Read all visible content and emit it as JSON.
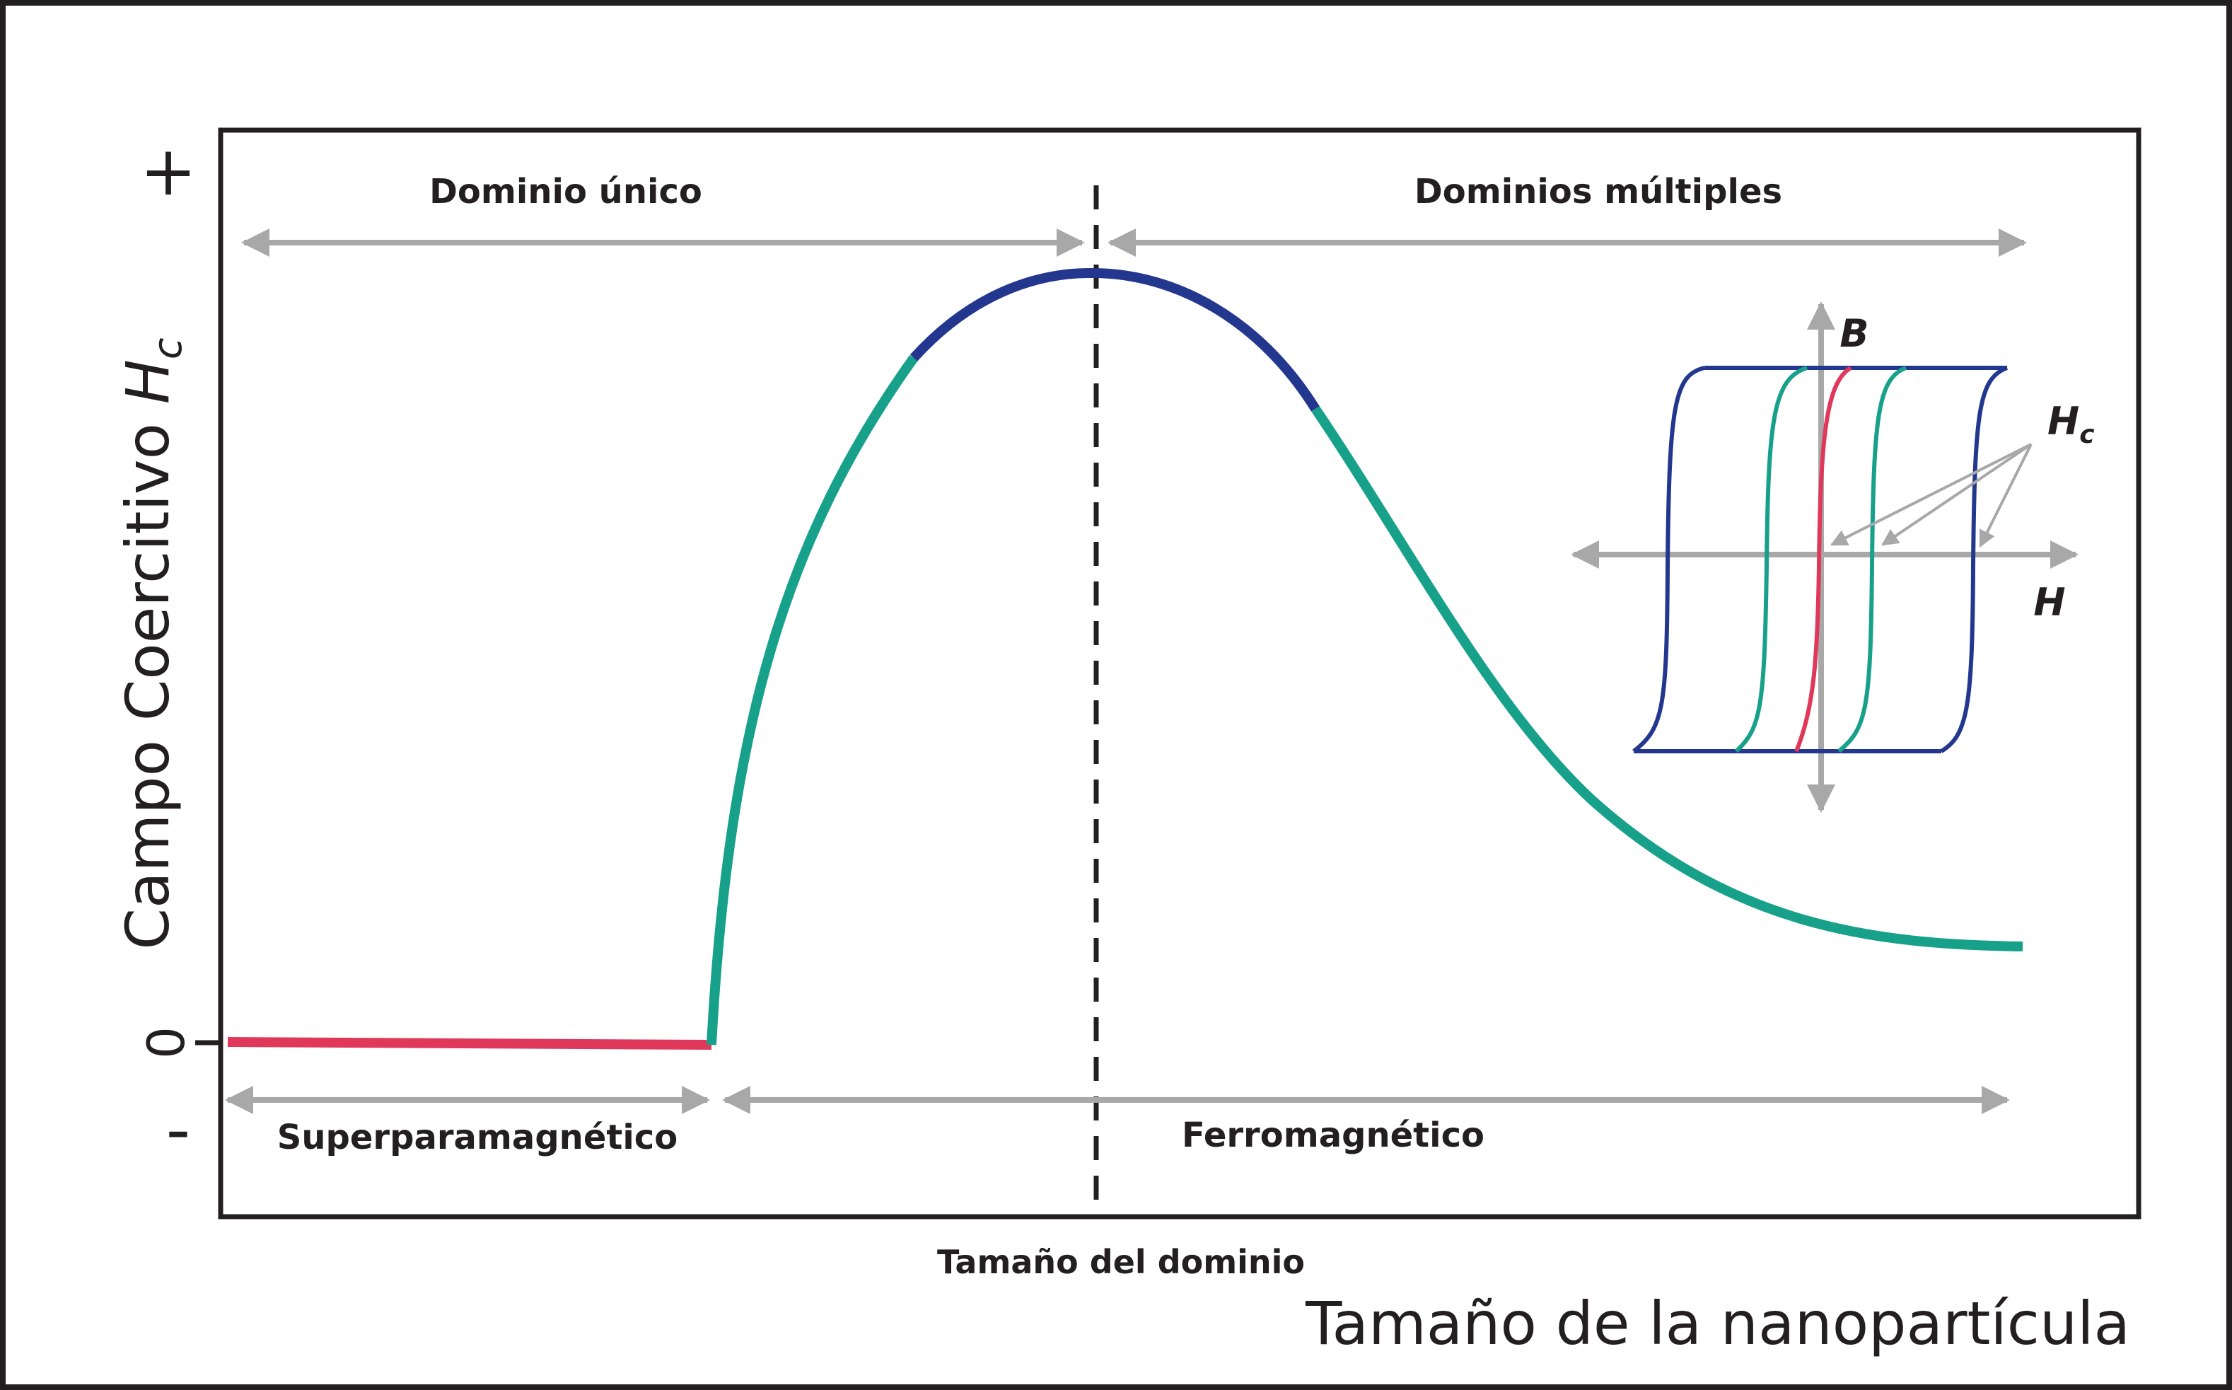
{
  "axes": {
    "y_label": "Campo Coercitivo",
    "y_label_symbol": "H",
    "y_label_subscript": "c",
    "y_plus": "+",
    "y_zero": "0",
    "y_minus": "-",
    "x_label": "Tamaño de la nanopartícula"
  },
  "regions": {
    "top_left": "Dominio único",
    "top_right": "Dominios múltiples",
    "bottom_left": "Superparamagnético",
    "bottom_right": "Ferromagnético",
    "critical_size": "Tamaño del dominio"
  },
  "inset": {
    "b_label": "B",
    "h_label": "H",
    "hc_symbol": "H",
    "hc_subscript": "c"
  },
  "colors": {
    "superparamagnetic": "#e0385a",
    "ferromagnetic": "#17a08a",
    "single_domain_peak": "#24378f",
    "arrows": "#a8a8a8",
    "text": "#231f20"
  }
}
